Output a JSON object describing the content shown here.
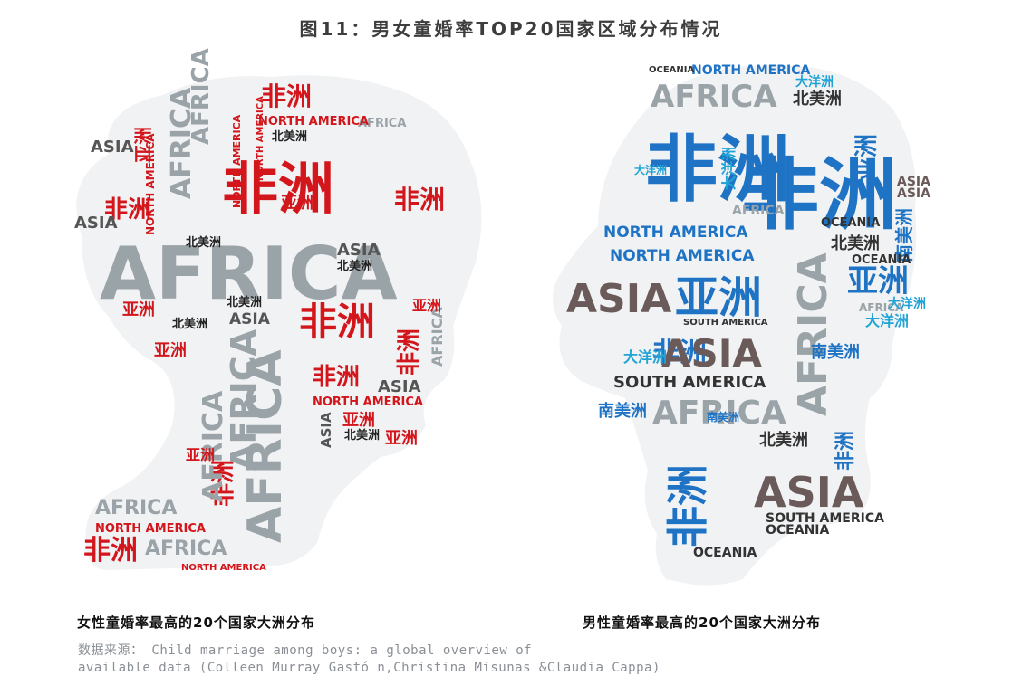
{
  "title": "图11：男女童婚率TOP20国家区域分布情况",
  "colors": {
    "female_red": "#d3161c",
    "female_gray": "#9aa3a8",
    "male_blue": "#1f73c4",
    "male_cyan": "#20a3d6",
    "male_brown": "#6b5a5a",
    "male_gray": "#9aa3a8",
    "silhouette": "#f1f2f3"
  },
  "panels": [
    {
      "caption": "女性童婚率最高的20个国家大洲分布",
      "words": [
        "非洲",
        "AFRICA",
        "NORTH AMERICA",
        "北美洲",
        "ASIA",
        "亚洲"
      ]
    },
    {
      "caption": "男性童婚率最高的20个国家大洲分布",
      "words": [
        "非洲",
        "AFRICA",
        "ASIA",
        "亚洲",
        "NORTH AMERICA",
        "北美洲",
        "SOUTH AMERICA",
        "南美洲",
        "OCEANIA",
        "大洋洲"
      ]
    }
  ],
  "source": {
    "line1": "数据来源： Child marriage among boys: a global overview of",
    "line2": "available data (Colleen Murray Gastó n,Christina Misunas &Claudia Cappa)"
  }
}
